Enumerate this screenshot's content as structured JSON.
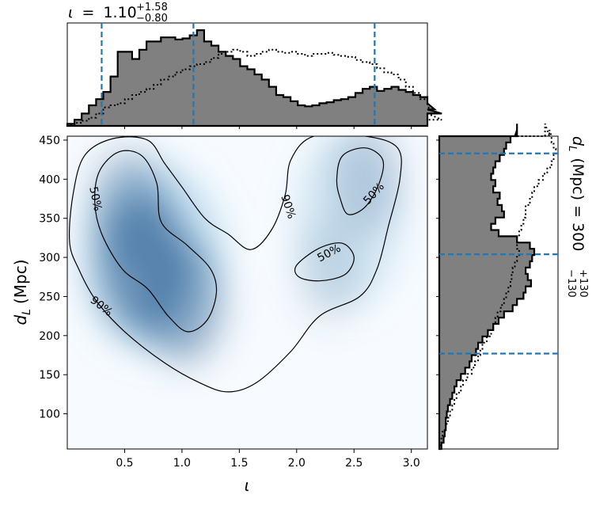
{
  "chart_data": [
    {
      "id": "joint",
      "type": "heatmap",
      "xlabel": "ι",
      "ylabel_main": "d",
      "ylabel_sub": "L",
      "ylabel_unit": "(Mpc)",
      "xlim": [
        0.0,
        3.14
      ],
      "ylim": [
        55,
        455
      ],
      "xticks": [
        0.5,
        1.0,
        1.5,
        2.0,
        2.5,
        3.0
      ],
      "xtick_labels": [
        "0.5",
        "1.0",
        "1.5",
        "2.0",
        "2.5",
        "3.0"
      ],
      "yticks": [
        100,
        150,
        200,
        250,
        300,
        350,
        400,
        450
      ],
      "ytick_labels": [
        "100",
        "150",
        "200",
        "250",
        "300",
        "350",
        "400",
        "450"
      ],
      "density_peaks": [
        {
          "x": 0.68,
          "y": 290,
          "weight": 1.0
        },
        {
          "x": 0.55,
          "y": 360,
          "weight": 0.6
        },
        {
          "x": 1.0,
          "y": 245,
          "weight": 0.7
        },
        {
          "x": 2.6,
          "y": 400,
          "weight": 0.45
        },
        {
          "x": 2.3,
          "y": 285,
          "weight": 0.3
        }
      ],
      "contours": [
        {
          "level": "50%",
          "label": "50%",
          "points": [
            [
              0.28,
              410
            ],
            [
              0.45,
              435
            ],
            [
              0.65,
              430
            ],
            [
              0.78,
              395
            ],
            [
              0.82,
              345
            ],
            [
              1.05,
              315
            ],
            [
              1.25,
              285
            ],
            [
              1.3,
              255
            ],
            [
              1.22,
              220
            ],
            [
              1.05,
              205
            ],
            [
              0.88,
              225
            ],
            [
              0.7,
              260
            ],
            [
              0.48,
              285
            ],
            [
              0.3,
              330
            ],
            [
              0.24,
              370
            ]
          ]
        },
        {
          "level": "50%",
          "label": "50%",
          "points": [
            [
              2.4,
              430
            ],
            [
              2.6,
              440
            ],
            [
              2.75,
              425
            ],
            [
              2.72,
              395
            ],
            [
              2.6,
              365
            ],
            [
              2.45,
              355
            ],
            [
              2.38,
              375
            ],
            [
              2.35,
              400
            ]
          ]
        },
        {
          "level": "50%",
          "label": "50%",
          "points": [
            [
              2.0,
              290
            ],
            [
              2.2,
              312
            ],
            [
              2.4,
              318
            ],
            [
              2.5,
              300
            ],
            [
              2.42,
              278
            ],
            [
              2.2,
              270
            ],
            [
              2.02,
              275
            ]
          ]
        },
        {
          "level": "90%",
          "label": "90%",
          "points": [
            [
              0.05,
              380
            ],
            [
              0.15,
              430
            ],
            [
              0.4,
              452
            ],
            [
              0.7,
              450
            ],
            [
              0.85,
              420
            ],
            [
              1.0,
              390
            ],
            [
              1.2,
              350
            ],
            [
              1.4,
              330
            ],
            [
              1.6,
              310
            ],
            [
              1.78,
              335
            ],
            [
              1.9,
              380
            ],
            [
              1.95,
              425
            ],
            [
              2.15,
              455
            ],
            [
              2.6,
              455
            ],
            [
              2.88,
              440
            ],
            [
              2.9,
              400
            ],
            [
              2.8,
              340
            ],
            [
              2.7,
              285
            ],
            [
              2.55,
              250
            ],
            [
              2.2,
              225
            ],
            [
              1.95,
              180
            ],
            [
              1.65,
              140
            ],
            [
              1.4,
              128
            ],
            [
              1.15,
              140
            ],
            [
              0.85,
              165
            ],
            [
              0.5,
              205
            ],
            [
              0.25,
              245
            ],
            [
              0.1,
              285
            ],
            [
              0.02,
              320
            ]
          ]
        }
      ],
      "contour_labels": [
        {
          "x": 0.25,
          "y": 375,
          "text": "50%",
          "angle": 78
        },
        {
          "x": 2.67,
          "y": 382,
          "text": "50%",
          "angle": -48
        },
        {
          "x": 2.28,
          "y": 306,
          "text": "50%",
          "angle": -28
        },
        {
          "x": 1.93,
          "y": 365,
          "text": "90%",
          "angle": 72
        },
        {
          "x": 0.3,
          "y": 238,
          "text": "90%",
          "angle": 38
        }
      ]
    },
    {
      "id": "top_marginal",
      "type": "histogram",
      "title_symbol": "ι",
      "title_equals": "=",
      "title_value": "1.10",
      "title_upper": "+1.58",
      "title_lower": "−0.80",
      "xlim": [
        0.0,
        3.14
      ],
      "ylim": [
        0,
        1.0
      ],
      "bin_width": 0.0628,
      "posterior_values": [
        0.02,
        0.06,
        0.12,
        0.2,
        0.26,
        0.33,
        0.48,
        0.72,
        0.72,
        0.65,
        0.74,
        0.82,
        0.82,
        0.86,
        0.86,
        0.84,
        0.85,
        0.88,
        0.93,
        0.82,
        0.78,
        0.72,
        0.68,
        0.65,
        0.58,
        0.55,
        0.5,
        0.45,
        0.38,
        0.3,
        0.28,
        0.24,
        0.2,
        0.19,
        0.2,
        0.22,
        0.23,
        0.25,
        0.26,
        0.28,
        0.32,
        0.36,
        0.38,
        0.34,
        0.36,
        0.38,
        0.35,
        0.33,
        0.3,
        0.28,
        0.22,
        0.16,
        0.12
      ],
      "prior_values": [
        0.01,
        0.03,
        0.05,
        0.08,
        0.12,
        0.18,
        0.2,
        0.22,
        0.26,
        0.3,
        0.33,
        0.36,
        0.4,
        0.45,
        0.48,
        0.52,
        0.55,
        0.58,
        0.6,
        0.62,
        0.66,
        0.7,
        0.72,
        0.74,
        0.72,
        0.68,
        0.7,
        0.72,
        0.74,
        0.72,
        0.71,
        0.72,
        0.7,
        0.68,
        0.7,
        0.7,
        0.71,
        0.69,
        0.68,
        0.67,
        0.64,
        0.62,
        0.6,
        0.56,
        0.52,
        0.5,
        0.45,
        0.38,
        0.32,
        0.26,
        0.19,
        0.12,
        0.06
      ],
      "quantile_lines": [
        0.3,
        1.1,
        2.68
      ],
      "line_color": "#1f77b4"
    },
    {
      "id": "right_marginal",
      "type": "histogram",
      "title_main": "d",
      "title_sub": "L",
      "title_rest": "(Mpc) = 300",
      "title_upper": "+130",
      "title_lower": "−130",
      "ylim": [
        55,
        455
      ],
      "xlim": [
        0,
        1.0
      ],
      "bin_width": 8.0,
      "posterior_values": [
        0.02,
        0.04,
        0.05,
        0.06,
        0.06,
        0.07,
        0.08,
        0.1,
        0.12,
        0.14,
        0.16,
        0.2,
        0.24,
        0.28,
        0.3,
        0.34,
        0.36,
        0.4,
        0.45,
        0.5,
        0.55,
        0.6,
        0.68,
        0.72,
        0.78,
        0.8,
        0.85,
        0.82,
        0.8,
        0.84,
        0.86,
        0.88,
        0.84,
        0.72,
        0.55,
        0.48,
        0.52,
        0.6,
        0.58,
        0.54,
        0.56,
        0.5,
        0.52,
        0.48,
        0.5,
        0.52,
        0.56,
        0.6,
        0.62,
        0.66,
        0.7,
        0.72,
        0.72
      ],
      "prior_values": [
        0.01,
        0.02,
        0.03,
        0.06,
        0.08,
        0.1,
        0.12,
        0.14,
        0.16,
        0.2,
        0.22,
        0.26,
        0.3,
        0.33,
        0.36,
        0.38,
        0.4,
        0.44,
        0.48,
        0.5,
        0.52,
        0.54,
        0.57,
        0.6,
        0.62,
        0.64,
        0.66,
        0.67,
        0.68,
        0.7,
        0.72,
        0.74,
        0.72,
        0.72,
        0.74,
        0.76,
        0.78,
        0.8,
        0.8,
        0.84,
        0.86,
        0.88,
        0.92,
        0.96,
        1.0,
        1.04,
        1.06,
        1.08,
        1.06,
        1.04,
        1.04,
        1.02,
        0.98
      ],
      "quantile_lines": [
        177,
        304,
        433
      ],
      "line_color": "#1f77b4"
    }
  ]
}
